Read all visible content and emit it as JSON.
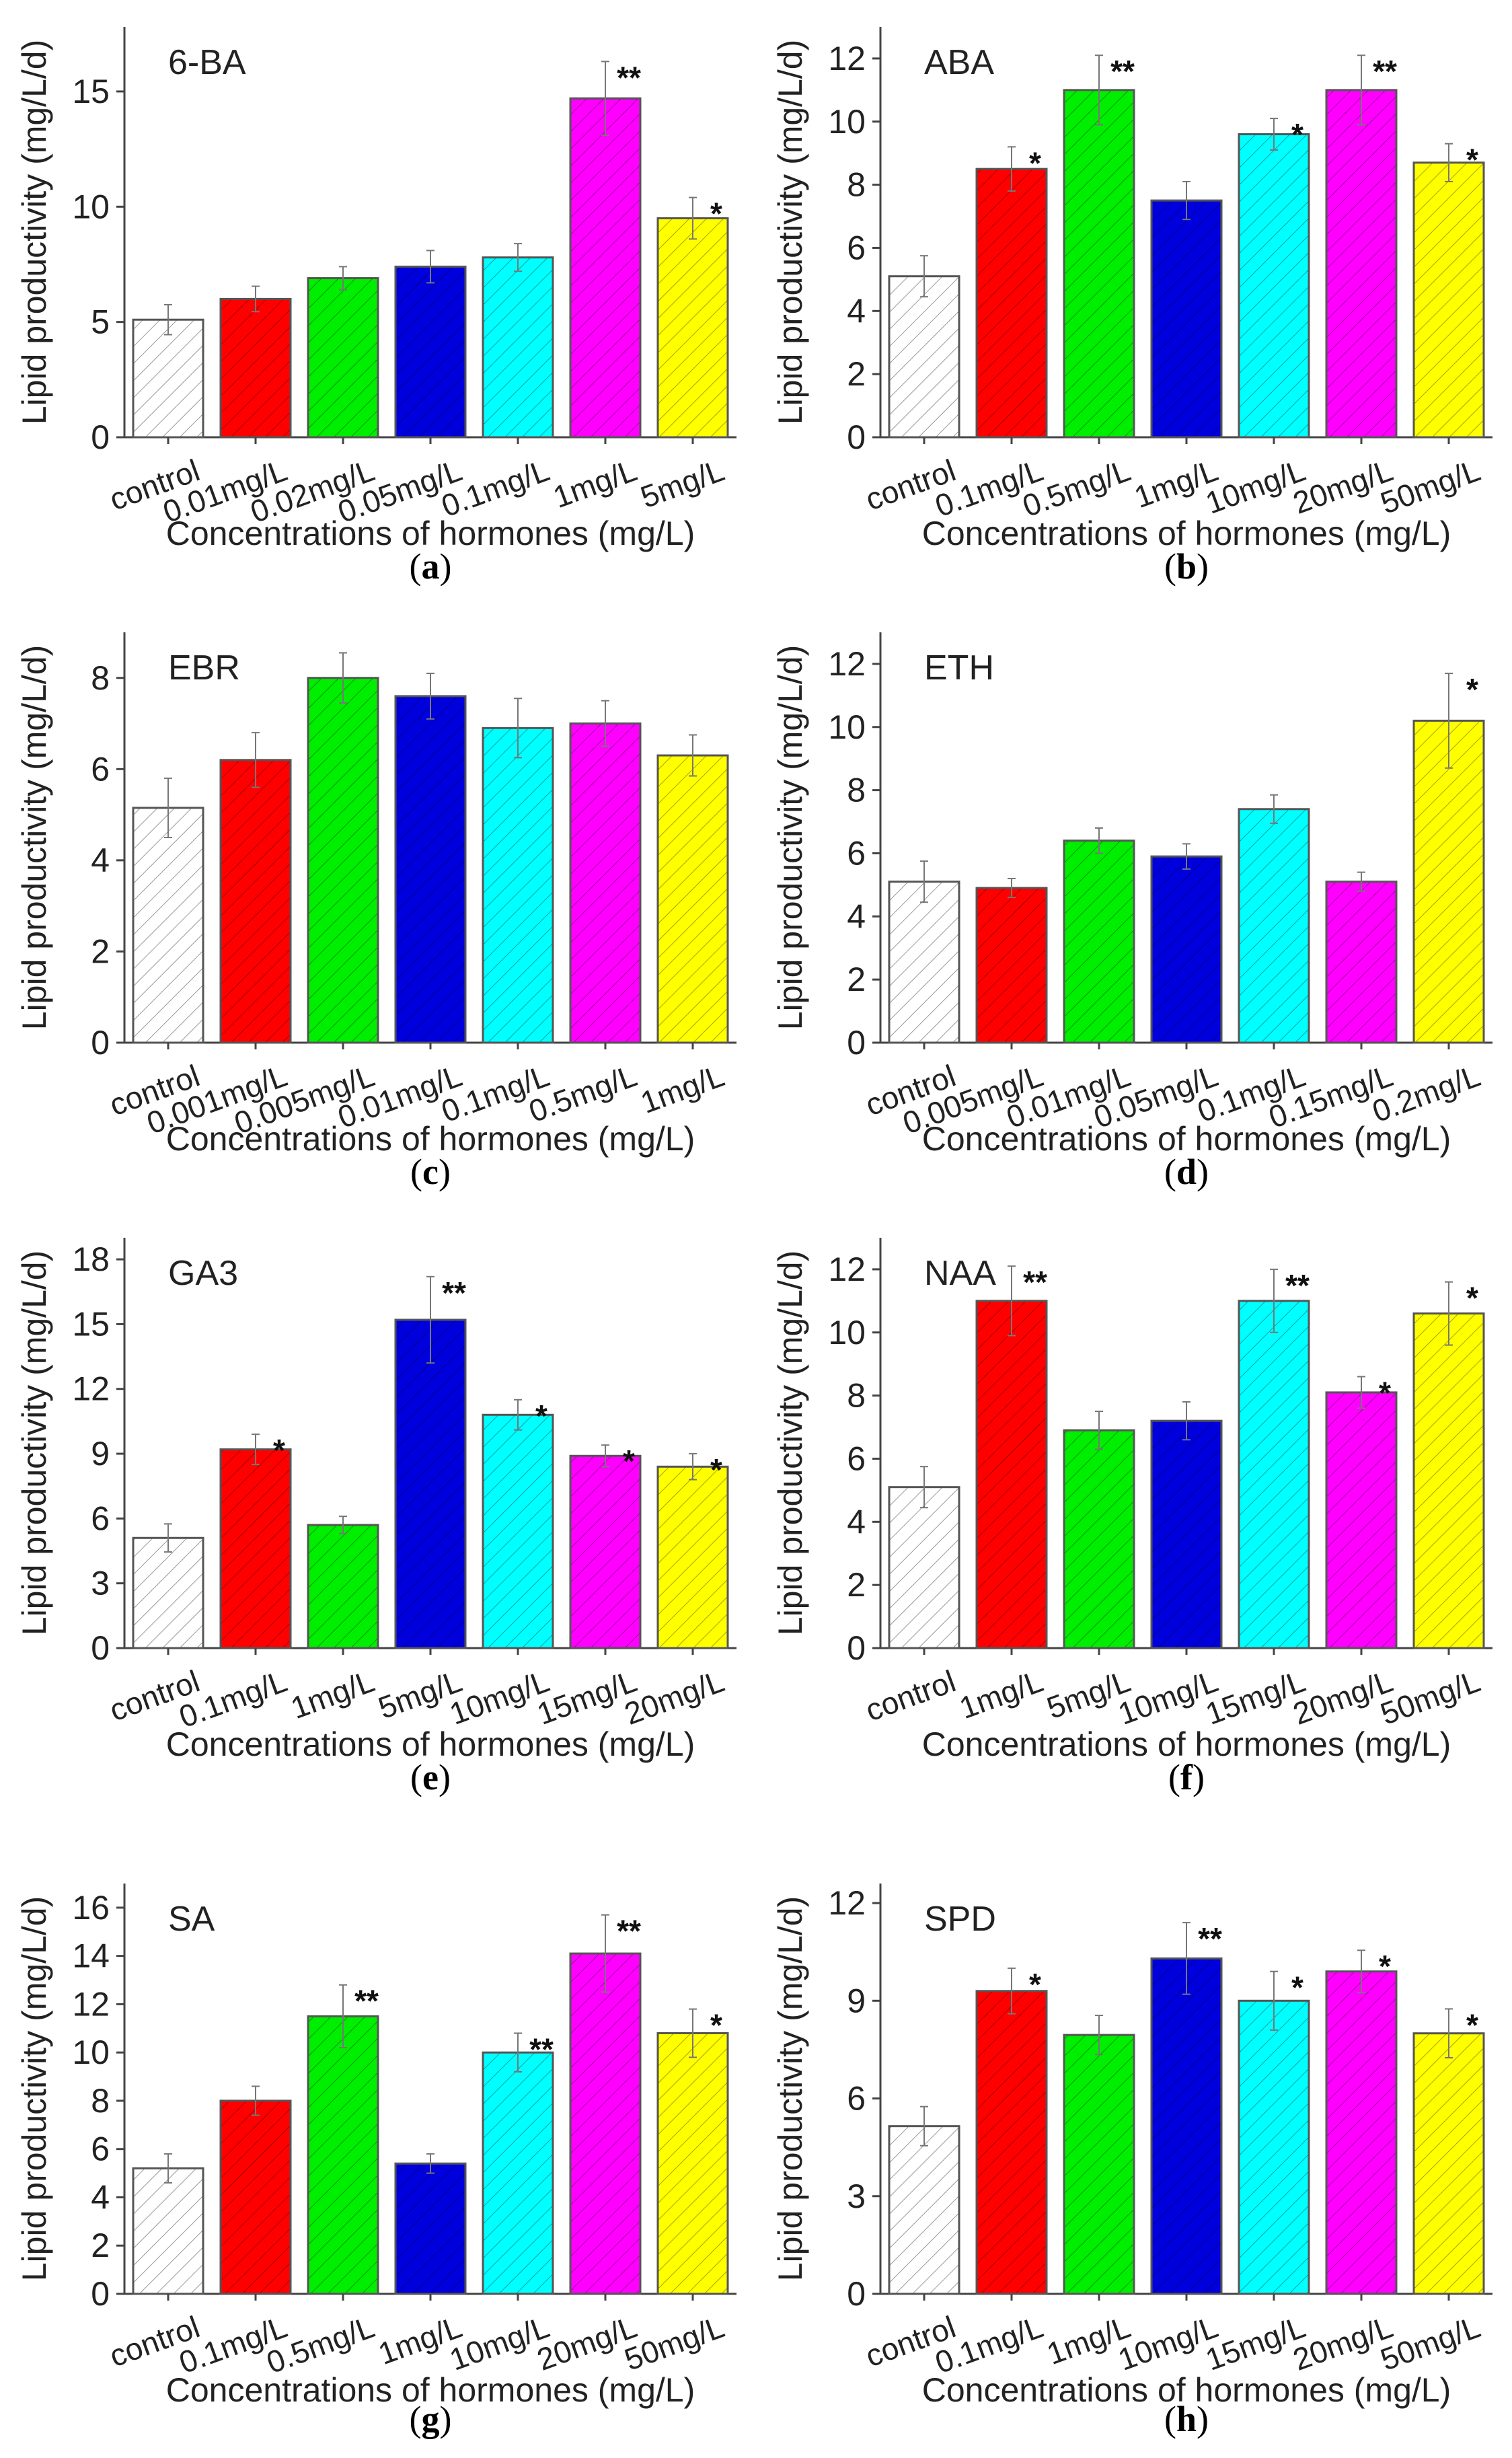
{
  "chart_data": [
    {
      "type": "bar",
      "panel_label": "(a)",
      "bold_letter": "a",
      "title": "6-BA",
      "xlabel": "Concentrations of hormones (mg/L)",
      "ylabel": "Lipid productivity (mg/L/d)",
      "ylim": [
        0,
        17.8
      ],
      "yticks": [
        0,
        5,
        10,
        15
      ],
      "categories": [
        "control",
        "0.01mg/L",
        "0.02mg/L",
        "0.05mg/L",
        "0.1mg/L",
        "1mg/L",
        "5mg/L"
      ],
      "values": [
        5.1,
        6.0,
        6.9,
        7.4,
        7.8,
        14.7,
        9.5
      ],
      "errors": [
        0.65,
        0.55,
        0.5,
        0.7,
        0.6,
        1.6,
        0.9
      ],
      "significance": [
        "",
        "",
        "",
        "",
        "",
        "**",
        "*"
      ]
    },
    {
      "type": "bar",
      "panel_label": "(b)",
      "bold_letter": "b",
      "title": "ABA",
      "xlabel": "Concentrations of hormones (mg/L)",
      "ylabel": "Lipid productivity (mg/L/d)",
      "ylim": [
        0,
        13
      ],
      "yticks": [
        0,
        2,
        4,
        6,
        8,
        10,
        12
      ],
      "categories": [
        "control",
        "0.1mg/L",
        "0.5mg/L",
        "1mg/L",
        "10mg/L",
        "20mg/L",
        "50mg/L"
      ],
      "values": [
        5.1,
        8.5,
        11.0,
        7.5,
        9.6,
        11.0,
        8.7
      ],
      "errors": [
        0.65,
        0.7,
        1.1,
        0.6,
        0.5,
        1.1,
        0.6
      ],
      "significance": [
        "",
        "*",
        "**",
        "",
        "*",
        "**",
        "*"
      ]
    },
    {
      "type": "bar",
      "panel_label": "(c)",
      "bold_letter": "c",
      "title": "EBR",
      "xlabel": "Concentrations of hormones (mg/L)",
      "ylabel": "Lipid productivity (mg/L/d)",
      "ylim": [
        0,
        9
      ],
      "yticks": [
        0,
        2,
        4,
        6,
        8
      ],
      "categories": [
        "control",
        "0.001mg/L",
        "0.005mg/L",
        "0.01mg/L",
        "0.1mg/L",
        "0.5mg/L",
        "1mg/L"
      ],
      "values": [
        5.15,
        6.2,
        8.0,
        7.6,
        6.9,
        7.0,
        6.3
      ],
      "errors": [
        0.65,
        0.6,
        0.55,
        0.5,
        0.65,
        0.5,
        0.45
      ],
      "significance": [
        "",
        "",
        "",
        "",
        "",
        "",
        ""
      ]
    },
    {
      "type": "bar",
      "panel_label": "(d)",
      "bold_letter": "d",
      "title": "ETH",
      "xlabel": "Concentrations of hormones (mg/L)",
      "ylabel": "Lipid productivity (mg/L/d)",
      "ylim": [
        0,
        13
      ],
      "yticks": [
        0,
        2,
        4,
        6,
        8,
        10,
        12
      ],
      "categories": [
        "control",
        "0.005mg/L",
        "0.01mg/L",
        "0.05mg/L",
        "0.1mg/L",
        "0.15mg/L",
        "0.2mg/L"
      ],
      "values": [
        5.1,
        4.9,
        6.4,
        5.9,
        7.4,
        5.1,
        10.2
      ],
      "errors": [
        0.65,
        0.3,
        0.4,
        0.4,
        0.45,
        0.3,
        1.5
      ],
      "significance": [
        "",
        "",
        "",
        "",
        "",
        "",
        "*"
      ]
    },
    {
      "type": "bar",
      "panel_label": "(e)",
      "bold_letter": "e",
      "title": "GA3",
      "xlabel": "Concentrations of hormones (mg/L)",
      "ylabel": "Lipid productivity (mg/L/d)",
      "ylim": [
        0,
        19
      ],
      "yticks": [
        0,
        3,
        6,
        9,
        12,
        15,
        18
      ],
      "categories": [
        "control",
        "0.1mg/L",
        "1mg/L",
        "5mg/L",
        "10mg/L",
        "15mg/L",
        "20mg/L"
      ],
      "values": [
        5.1,
        9.2,
        5.7,
        15.2,
        10.8,
        8.9,
        8.4
      ],
      "errors": [
        0.65,
        0.7,
        0.4,
        2.0,
        0.7,
        0.5,
        0.6
      ],
      "significance": [
        "",
        "*",
        "",
        "**",
        "*",
        "*",
        "*"
      ]
    },
    {
      "type": "bar",
      "panel_label": "(f)",
      "bold_letter": "f",
      "title": "NAA",
      "xlabel": "Concentrations of hormones (mg/L)",
      "ylabel": "Lipid productivity (mg/L/d)",
      "ylim": [
        0,
        13
      ],
      "yticks": [
        0,
        2,
        4,
        6,
        8,
        10,
        12
      ],
      "categories": [
        "control",
        "1mg/L",
        "5mg/L",
        "10mg/L",
        "15mg/L",
        "20mg/L",
        "50mg/L"
      ],
      "values": [
        5.1,
        11.0,
        6.9,
        7.2,
        11.0,
        8.1,
        10.6
      ],
      "errors": [
        0.65,
        1.1,
        0.6,
        0.6,
        1.0,
        0.5,
        1.0
      ],
      "significance": [
        "",
        "**",
        "",
        "",
        "**",
        "*",
        "*"
      ]
    },
    {
      "type": "bar",
      "panel_label": "(g)",
      "bold_letter": "g",
      "title": "SA",
      "xlabel": "Concentrations of hormones (mg/L)",
      "ylabel": "Lipid productivity (mg/L/d)",
      "ylim": [
        0,
        17
      ],
      "yticks": [
        0,
        2,
        4,
        6,
        8,
        10,
        12,
        14,
        16
      ],
      "categories": [
        "control",
        "0.1mg/L",
        "0.5mg/L",
        "1mg/L",
        "10mg/L",
        "20mg/L",
        "50mg/L"
      ],
      "values": [
        5.2,
        8.0,
        11.5,
        5.4,
        10.0,
        14.1,
        10.8
      ],
      "errors": [
        0.6,
        0.6,
        1.3,
        0.4,
        0.8,
        1.6,
        1.0
      ],
      "significance": [
        "",
        "",
        "**",
        "",
        "**",
        "**",
        "*"
      ]
    },
    {
      "type": "bar",
      "panel_label": "(h)",
      "bold_letter": "h",
      "title": "SPD",
      "xlabel": "Concentrations of hormones (mg/L)",
      "ylabel": "Lipid productivity (mg/L/d)",
      "ylim": [
        0,
        12.6
      ],
      "yticks": [
        0,
        3,
        6,
        9,
        12
      ],
      "categories": [
        "control",
        "0.1mg/L",
        "1mg/L",
        "10mg/L",
        "15mg/L",
        "20mg/L",
        "50mg/L"
      ],
      "values": [
        5.15,
        9.3,
        7.95,
        10.3,
        9.0,
        9.9,
        8.0
      ],
      "errors": [
        0.6,
        0.7,
        0.6,
        1.1,
        0.9,
        0.65,
        0.75
      ],
      "significance": [
        "",
        "*",
        "",
        "**",
        "*",
        "*",
        "*"
      ]
    }
  ],
  "colors": [
    "#ffffff",
    "#ff0000",
    "#00ee00",
    "#0000dd",
    "#00ffff",
    "#ff00ff",
    "#ffff00"
  ]
}
